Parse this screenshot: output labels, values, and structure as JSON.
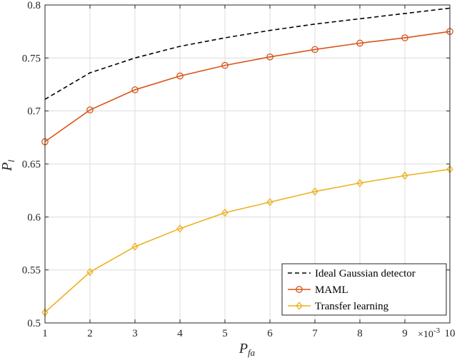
{
  "chart_data": {
    "type": "line",
    "xlabel": {
      "main": "P",
      "sub": "fa"
    },
    "ylabel": {
      "main": "P",
      "sub": "l"
    },
    "x_multiplier": {
      "base": "×10",
      "exponent": "-3"
    },
    "x": [
      1,
      2,
      3,
      4,
      5,
      6,
      7,
      8,
      9,
      10
    ],
    "xlim": [
      1,
      10
    ],
    "ylim": [
      0.5,
      0.8
    ],
    "xticks": [
      "1",
      "2",
      "3",
      "4",
      "5",
      "6",
      "7",
      "8",
      "9",
      "10"
    ],
    "yticks": [
      0.5,
      0.55,
      0.6,
      0.65,
      0.7,
      0.75,
      0.8
    ],
    "ytick_labels": [
      "0.5",
      "0.55",
      "0.6",
      "0.65",
      "0.7",
      "0.75",
      "0.8"
    ],
    "grid": true,
    "legend_position": "bottom-right",
    "series": [
      {
        "name": "Ideal Gaussian detector",
        "color": "#000000",
        "style": "dashed",
        "marker": "none",
        "values": [
          0.711,
          0.736,
          0.75,
          0.761,
          0.769,
          0.776,
          0.782,
          0.787,
          0.792,
          0.797
        ]
      },
      {
        "name": "MAML",
        "color": "#D95319",
        "style": "solid",
        "marker": "circle",
        "values": [
          0.671,
          0.701,
          0.72,
          0.733,
          0.743,
          0.751,
          0.758,
          0.764,
          0.769,
          0.775
        ]
      },
      {
        "name": "Transfer learning",
        "color": "#EDB120",
        "style": "solid",
        "marker": "diamond",
        "values": [
          0.51,
          0.548,
          0.572,
          0.589,
          0.604,
          0.614,
          0.624,
          0.632,
          0.639,
          0.645
        ]
      }
    ]
  }
}
